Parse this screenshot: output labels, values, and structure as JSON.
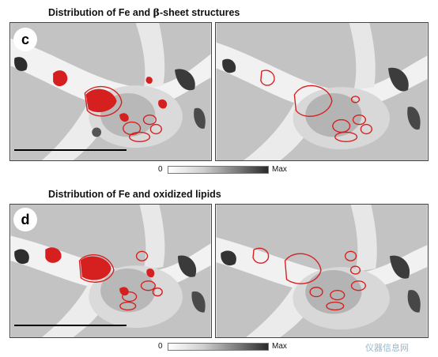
{
  "section_c": {
    "title_prefix": "Distribution of Fe and ",
    "title_symbol": "β",
    "title_suffix": "-sheet structures",
    "panel_label": "c",
    "colorbar": {
      "min_label": "0",
      "max_label": "Max"
    }
  },
  "section_d": {
    "title": "Distribution of Fe and oxidized lipids",
    "panel_label": "d",
    "colorbar": {
      "min_label": "0",
      "max_label": "Max"
    }
  },
  "watermark": "仪器信息网",
  "colors": {
    "roi_outline": "#d62020",
    "background": "#ffffff",
    "text": "#111111"
  }
}
